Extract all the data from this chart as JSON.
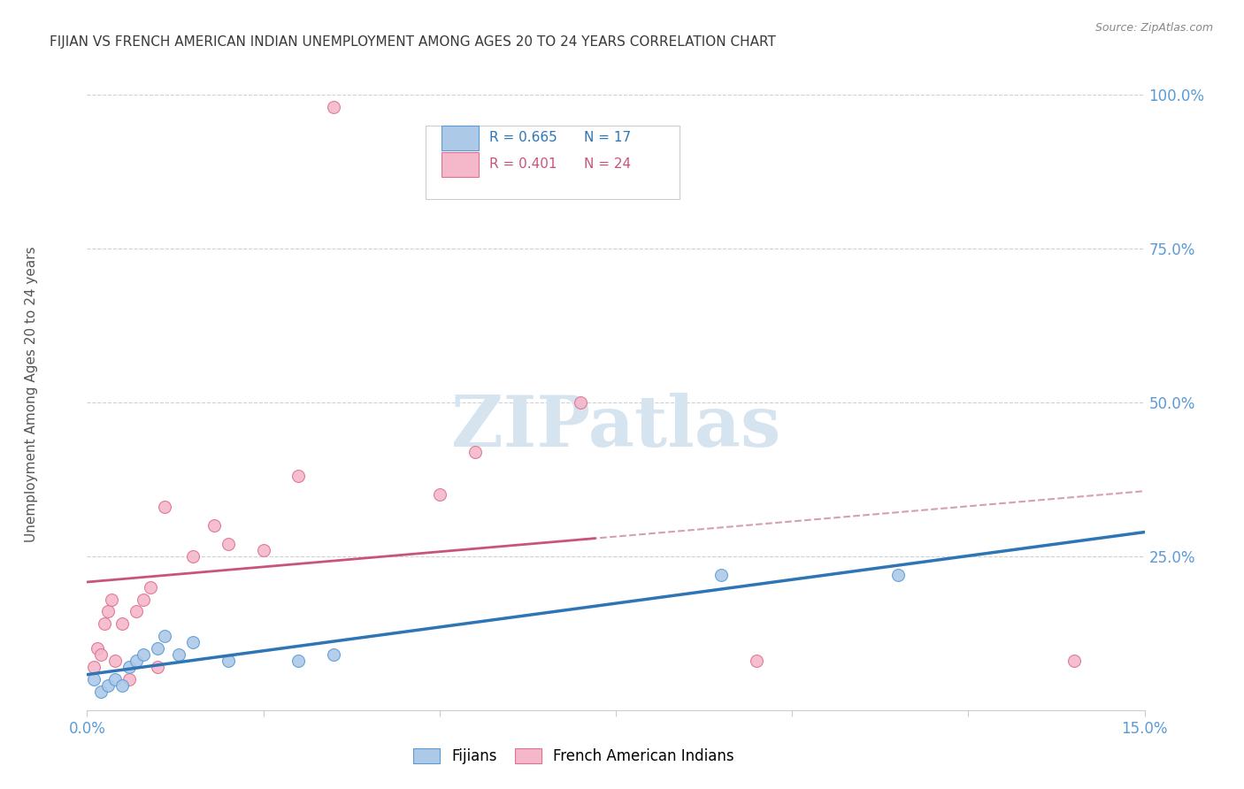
{
  "title": "FIJIAN VS FRENCH AMERICAN INDIAN UNEMPLOYMENT AMONG AGES 20 TO 24 YEARS CORRELATION CHART",
  "source": "Source: ZipAtlas.com",
  "ylabel": "Unemployment Among Ages 20 to 24 years",
  "xlim": [
    0.0,
    15.0
  ],
  "ylim": [
    0.0,
    100.0
  ],
  "fijian_color": "#adc9e8",
  "fijian_edge_color": "#5b9bd5",
  "fijian_line_color": "#2e75b6",
  "french_color": "#f4b8ca",
  "french_edge_color": "#e07090",
  "french_line_color": "#c9547a",
  "french_dash_color": "#d4a0b0",
  "watermark_color": "#d6e4f0",
  "background_color": "#ffffff",
  "grid_color": "#d0d0d0",
  "title_color": "#3a3a3a",
  "right_tick_color": "#5b9bd5",
  "marker_size": 100,
  "fijian_x": [
    0.1,
    0.2,
    0.3,
    0.4,
    0.5,
    0.6,
    0.7,
    0.8,
    1.0,
    1.1,
    1.3,
    1.5,
    2.0,
    3.0,
    3.5,
    9.0,
    11.5
  ],
  "fijian_y": [
    5.0,
    3.0,
    4.0,
    5.0,
    4.0,
    7.0,
    8.0,
    9.0,
    10.0,
    12.0,
    9.0,
    11.0,
    8.0,
    8.0,
    9.0,
    22.0,
    22.0
  ],
  "french_x": [
    0.1,
    0.15,
    0.2,
    0.25,
    0.3,
    0.35,
    0.4,
    0.5,
    0.6,
    0.7,
    0.8,
    0.9,
    1.0,
    1.1,
    1.5,
    1.8,
    2.0,
    2.5,
    3.0,
    5.0,
    5.5,
    7.0,
    9.5,
    14.0
  ],
  "french_y": [
    7.0,
    10.0,
    9.0,
    14.0,
    16.0,
    18.0,
    8.0,
    14.0,
    5.0,
    16.0,
    18.0,
    20.0,
    7.0,
    33.0,
    25.0,
    30.0,
    27.0,
    26.0,
    38.0,
    35.0,
    42.0,
    50.0,
    8.0,
    8.0
  ],
  "french_outlier_x": 3.5,
  "french_outlier_y": 98.0,
  "fijian_trend": [
    3.5,
    20.5
  ],
  "french_solid_end_x": 7.2,
  "french_dash_start_x": 7.0
}
